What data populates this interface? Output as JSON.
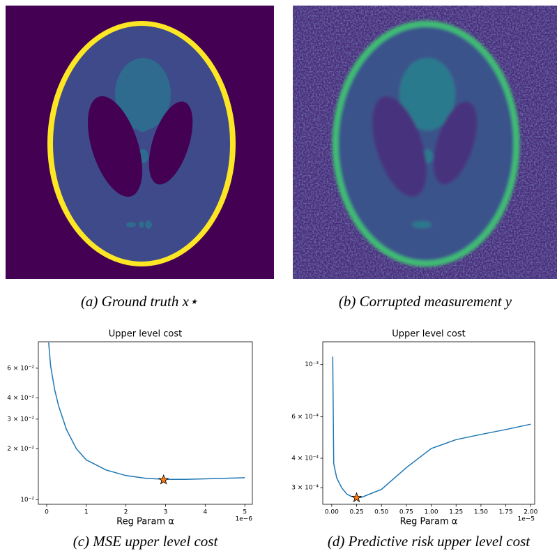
{
  "images": [
    {
      "caption": "(a) Ground truth x⋆"
    },
    {
      "caption": "(b) Corrupted measurement y"
    }
  ],
  "chart_data": [
    {
      "type": "line",
      "title": "Upper level cost",
      "xlabel": "Reg Param α",
      "x_offset_label": "1e−6",
      "caption": "(c) MSE upper level cost",
      "color": "#1f77b4",
      "yscale": "log",
      "x": [
        0.05,
        0.1,
        0.2,
        0.3,
        0.5,
        0.75,
        1,
        1.5,
        2,
        2.5,
        3,
        3.5,
        4,
        4.5,
        5
      ],
      "values": [
        0.085,
        0.062,
        0.045,
        0.036,
        0.026,
        0.02,
        0.0172,
        0.015,
        0.0139,
        0.0134,
        0.0132,
        0.0132,
        0.0133,
        0.0134,
        0.0135
      ],
      "marker": {
        "x": 2.95,
        "y": 0.0131,
        "color": "#ff7f0e"
      },
      "xlim": [
        -0.21,
        5.19
      ],
      "ylim": [
        0.0094,
        0.086
      ],
      "xticks": [
        0,
        1,
        2,
        3,
        4,
        5
      ],
      "yticks": [
        {
          "value": 0.01,
          "label": "10⁻²"
        },
        {
          "value": 0.02,
          "label": "2 × 10⁻²"
        },
        {
          "value": 0.03,
          "label": "3 × 10⁻²"
        },
        {
          "value": 0.04,
          "label": "4 × 10⁻²"
        },
        {
          "value": 0.06,
          "label": "6 × 10⁻²"
        }
      ]
    },
    {
      "type": "line",
      "title": "Upper level cost",
      "xlabel": "Reg Param α",
      "x_offset_label": "1e−5",
      "caption": "(d) Predictive risk upper level cost",
      "color": "#1f77b4",
      "yscale": "log",
      "x": [
        0.01,
        0.02,
        0.05,
        0.1,
        0.15,
        0.2,
        0.25,
        0.3,
        0.5,
        0.75,
        1.0,
        1.25,
        1.5,
        1.75,
        2.0
      ],
      "values": [
        0.00108,
        0.00038,
        0.00033,
        0.0003,
        0.000282,
        0.000275,
        0.000272,
        0.000273,
        0.000295,
        0.000365,
        0.00044,
        0.00048,
        0.000505,
        0.00053,
        0.000558
      ],
      "marker": {
        "x": 0.25,
        "y": 0.000272,
        "color": "#ff7f0e"
      },
      "xlim": [
        -0.09,
        2.04
      ],
      "ylim": [
        0.000255,
        0.00125
      ],
      "xticks": [
        {
          "value": 0,
          "label": "0.00"
        },
        {
          "value": 0.25,
          "label": "0.25"
        },
        {
          "value": 0.5,
          "label": "0.50"
        },
        {
          "value": 0.75,
          "label": "0.75"
        },
        {
          "value": 1,
          "label": "1.00"
        },
        {
          "value": 1.25,
          "label": "1.25"
        },
        {
          "value": 1.5,
          "label": "1.50"
        },
        {
          "value": 1.75,
          "label": "1.75"
        },
        {
          "value": 2,
          "label": "2.00"
        }
      ],
      "yticks": [
        {
          "value": 0.0003,
          "label": "3 × 10⁻⁴"
        },
        {
          "value": 0.0004,
          "label": "4 × 10⁻⁴"
        },
        {
          "value": 0.0006,
          "label": "6 × 10⁻⁴"
        },
        {
          "value": 0.001,
          "label": "10⁻³"
        }
      ]
    }
  ]
}
